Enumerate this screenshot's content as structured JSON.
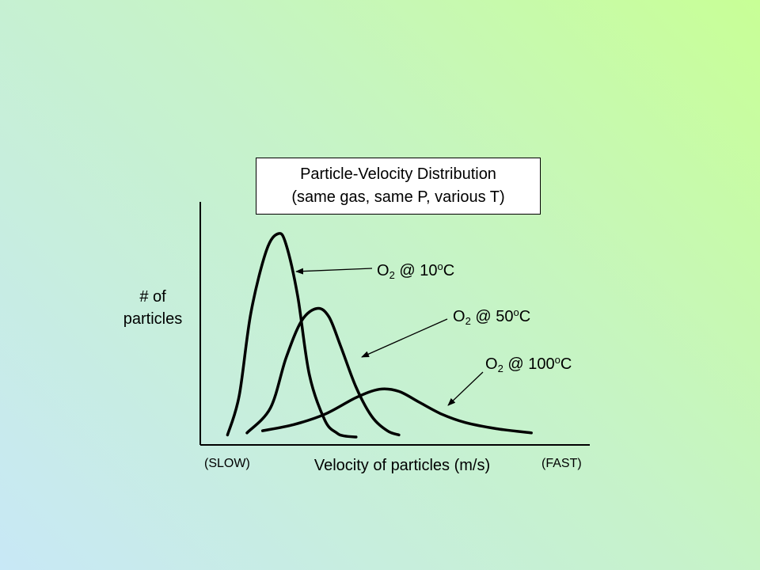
{
  "chart_data": {
    "type": "line",
    "title_line1": "Particle-Velocity Distribution",
    "title_line2": "(same gas, same P, various T)",
    "ylabel_line1": "# of",
    "ylabel_line2": "particles",
    "xlabel": "Velocity of particles (m/s)",
    "x_low_label": "(SLOW)",
    "x_high_label": "(FAST)",
    "xlim": [
      0,
      100
    ],
    "ylim": [
      0,
      100
    ],
    "axis_color": "#000000",
    "series": [
      {
        "name_prefix": "O",
        "name_sub": "2",
        "name_mid": " @ 10",
        "name_sup": "o",
        "name_suffix": "C",
        "x": [
          7,
          10,
          13,
          17,
          20,
          22,
          25,
          28,
          32,
          35,
          37,
          40
        ],
        "y": [
          1,
          20,
          60,
          90,
          98,
          93,
          68,
          30,
          8,
          2,
          0.5,
          0
        ]
      },
      {
        "name_prefix": "O",
        "name_sub": "2",
        "name_mid": " @ 50",
        "name_sup": "o",
        "name_suffix": "C",
        "x": [
          12,
          18,
          22,
          26,
          30,
          33,
          36,
          40,
          44,
          48,
          51
        ],
        "y": [
          2,
          14,
          38,
          56,
          62,
          58,
          44,
          24,
          10,
          3,
          1
        ]
      },
      {
        "name_prefix": "O",
        "name_sub": "2",
        "name_mid": " @ 100",
        "name_sup": "o",
        "name_suffix": "C",
        "x": [
          16,
          24,
          32,
          40,
          46,
          51,
          56,
          62,
          68,
          76,
          85
        ],
        "y": [
          3,
          6,
          11,
          19,
          23,
          22,
          17,
          11,
          7,
          4,
          2
        ]
      }
    ]
  }
}
